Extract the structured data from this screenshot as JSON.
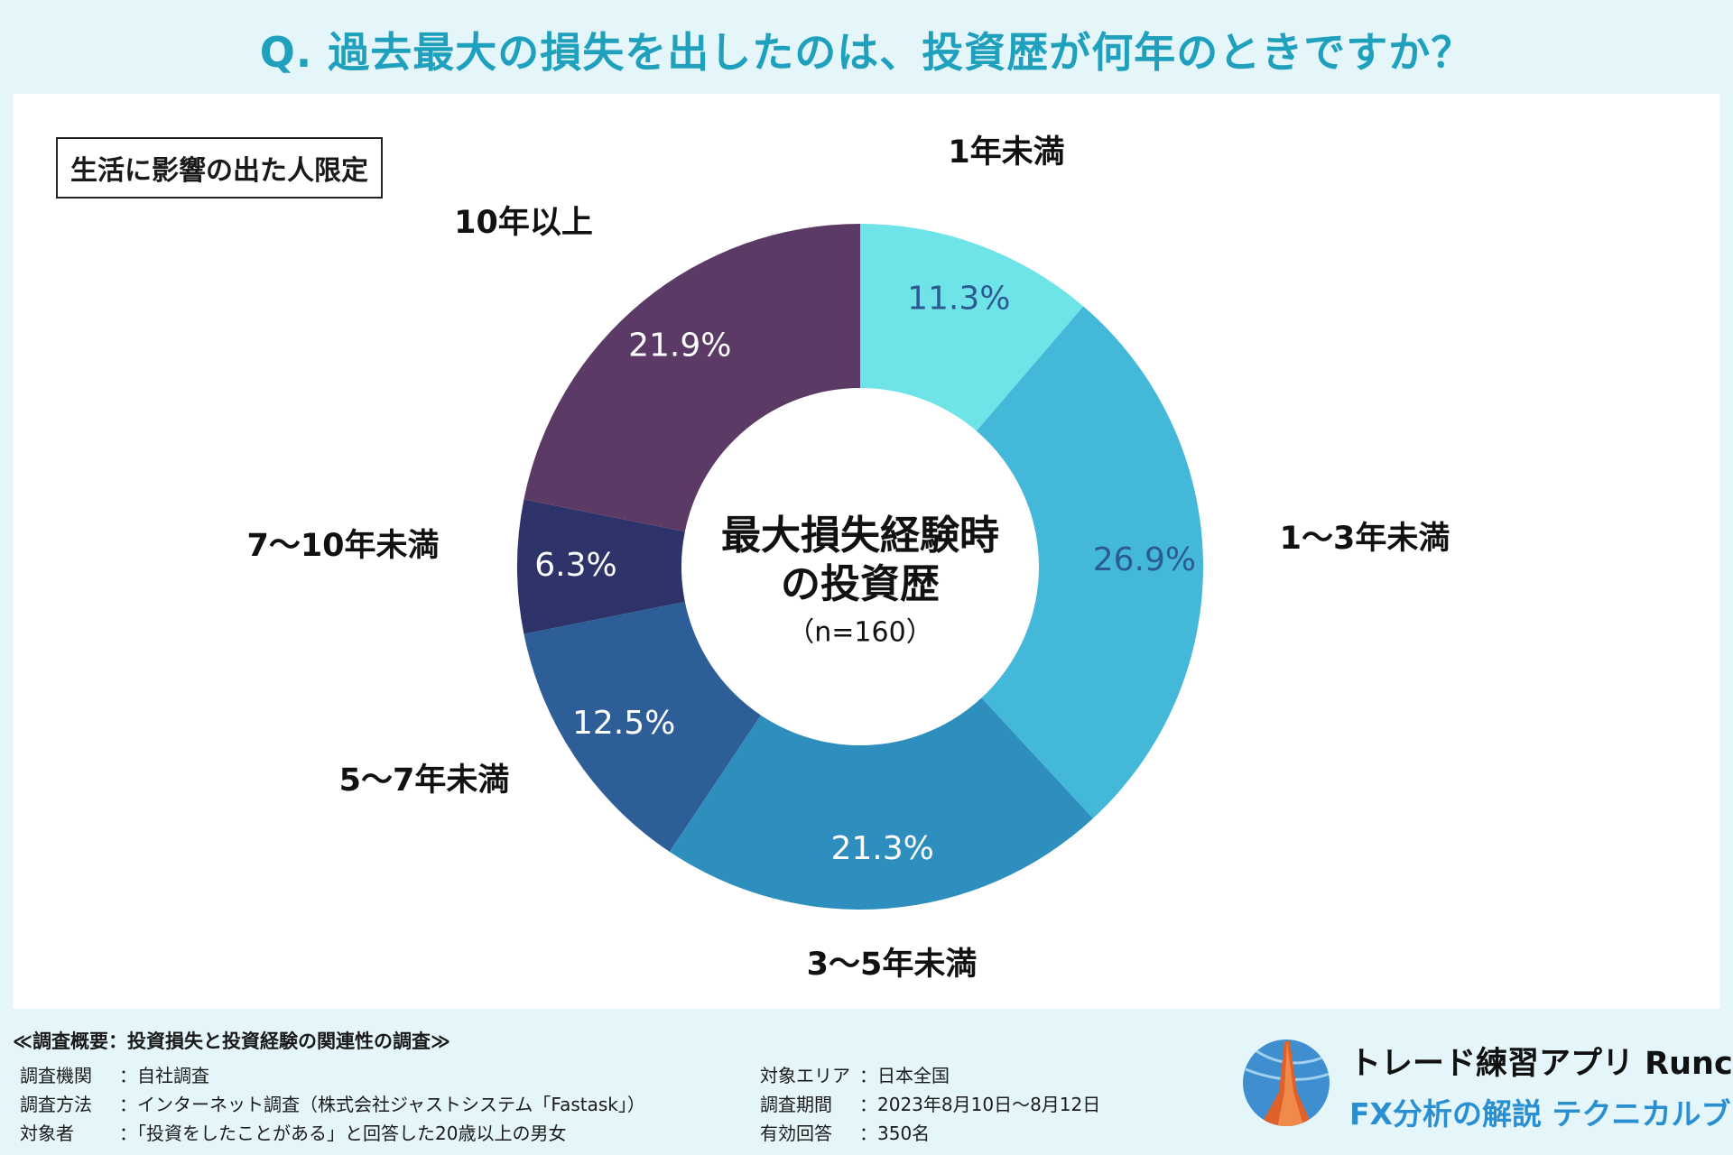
{
  "header": {
    "title": "Q. 過去最大の損失を出したのは、投資歴が何年のときですか？"
  },
  "note": "生活に影響の出た人限定",
  "chart_data": {
    "type": "pie",
    "style": "donut",
    "center_title_line1": "最大損失経験時",
    "center_title_line2": "の投資歴",
    "center_n": "（n=160）",
    "categories": [
      "1年未満",
      "1〜3年未満",
      "3〜5年未満",
      "5〜7年未満",
      "7〜10年未満",
      "10年以上"
    ],
    "values": [
      11.3,
      26.9,
      21.3,
      12.5,
      6.3,
      21.9
    ],
    "value_labels": [
      "11.3%",
      "26.9%",
      "21.3%",
      "12.5%",
      "6.3%",
      "21.9%"
    ],
    "colors": [
      "#6ee4e9",
      "#43b8d8",
      "#2e8fbf",
      "#2e5e98",
      "#2e336a",
      "#5c3a66"
    ],
    "label_colors": [
      "#2d5b91",
      "#2d5b91",
      "#ffffff",
      "#ffffff",
      "#ffffff",
      "#ffffff"
    ]
  },
  "footer": {
    "heading": "≪調査概要：投資損失と投資経験の関連性の調査≫",
    "left": [
      {
        "label": "調査機関",
        "value": "：自社調査"
      },
      {
        "label": "調査方法",
        "value": "：インターネット調査（株式会社ジャストシステム「Fastask」）"
      },
      {
        "label": "対象者",
        "value": "：「投資をしたことがある」と回答した20歳以上の男女"
      }
    ],
    "right": [
      {
        "label": "対象エリア",
        "value": "：日本全国"
      },
      {
        "label": "調査期間",
        "value": "：2023年8月10日〜8月12日"
      },
      {
        "label": "有効回答",
        "value": "：350名"
      }
    ]
  },
  "brand": {
    "name": "トレード練習アプリ Runcha",
    "subtitle": "FX分析の解説 テクニカルブック"
  }
}
